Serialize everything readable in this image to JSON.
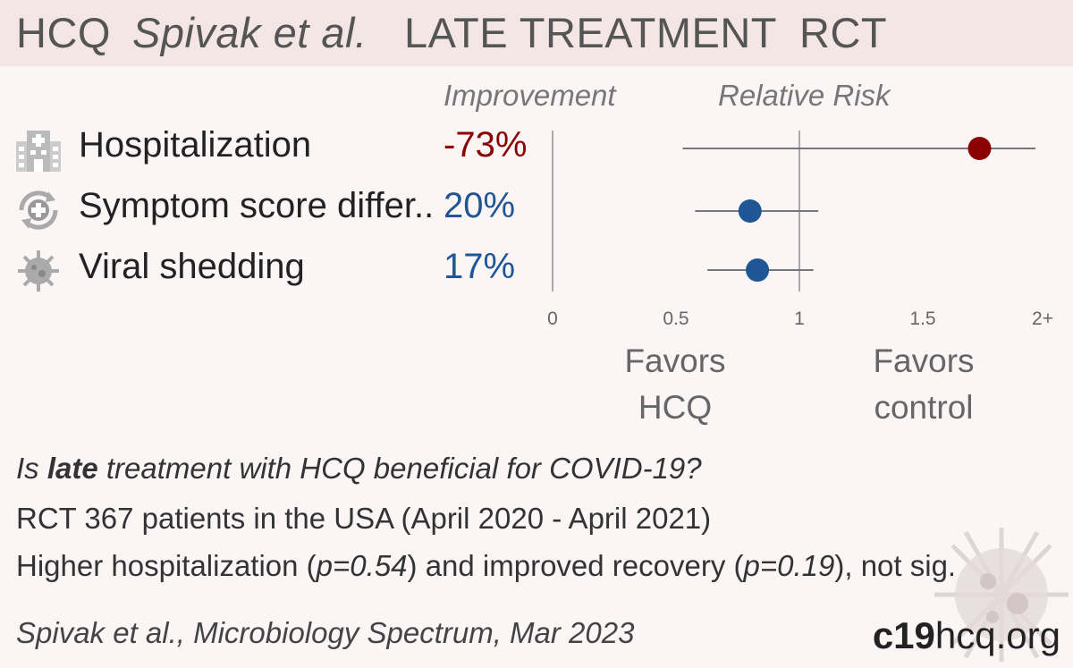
{
  "header": {
    "drug": "HCQ",
    "author": "Spivak et al.",
    "stage": "LATE TREATMENT",
    "design": "RCT"
  },
  "columns": {
    "improvement": "Improvement",
    "relative_risk": "Relative Risk"
  },
  "chart_data": {
    "type": "forest",
    "x_axis": {
      "ticks": [
        "0",
        "0.5",
        "1",
        "1.5",
        "2+"
      ],
      "range": [
        0,
        2
      ]
    },
    "reference_line": 1,
    "favors_left": [
      "Favors",
      "HCQ"
    ],
    "favors_right": [
      "Favors",
      "control"
    ],
    "rows": [
      {
        "label": "Hospitalization",
        "icon": "hospital-icon",
        "improvement": "-73%",
        "rr": 1.73,
        "ci_low": 0.52,
        "ci_high": 2.0,
        "color": "#8b0000"
      },
      {
        "label": "Symptom score differ..",
        "icon": "recovery-icon",
        "improvement": "20%",
        "rr": 0.8,
        "ci_low": 0.57,
        "ci_high": 1.12,
        "color": "#1f5696"
      },
      {
        "label": "Viral shedding",
        "icon": "virus-icon",
        "improvement": "17%",
        "rr": 0.83,
        "ci_low": 0.62,
        "ci_high": 1.1,
        "color": "#1f5696"
      }
    ]
  },
  "footer": {
    "question_pre": "Is ",
    "question_bold": "late",
    "question_post": " treatment with HCQ beneficial for COVID-19?",
    "line2": "RCT 367 patients in the USA (April 2020 - April 2021)",
    "line3_a": "Higher hospitalization (",
    "line3_p1": "p=0.54",
    "line3_b": ") and improved recovery (",
    "line3_p2": "p=0.19",
    "line3_c": "), not sig.",
    "citation": "Spivak et al., Microbiology Spectrum, Mar 2023",
    "brand_bold": "c19",
    "brand_rest": "hcq.org"
  }
}
